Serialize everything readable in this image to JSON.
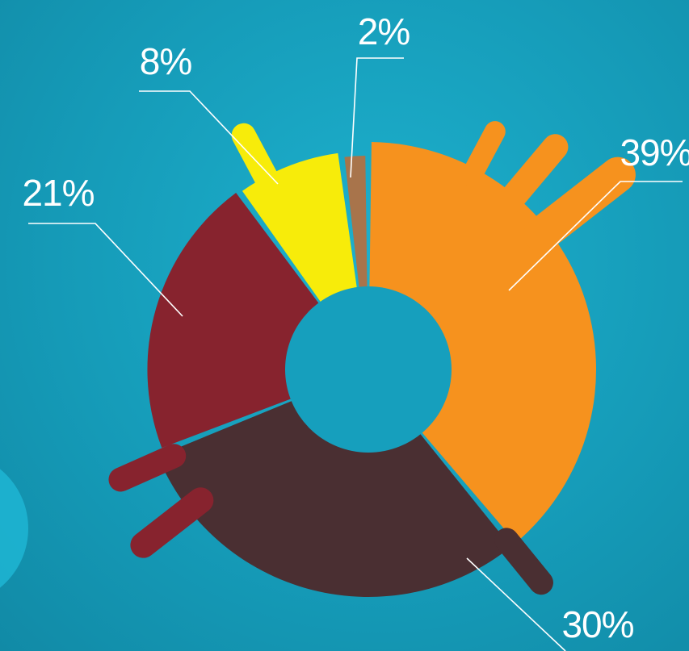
{
  "chart_data": {
    "type": "pie",
    "donut": true,
    "slices": [
      {
        "label": "39%",
        "value": 39,
        "color": "#f6921e"
      },
      {
        "label": "30%",
        "value": 30,
        "color": "#4a2f32"
      },
      {
        "label": "21%",
        "value": 21,
        "color": "#87232e"
      },
      {
        "label": "8%",
        "value": 8,
        "color": "#f7ec0a"
      },
      {
        "label": "2%",
        "value": 2,
        "color": "#a8744b"
      }
    ],
    "start": "top",
    "direction": "clockwise",
    "background_color": "#169fbd"
  }
}
